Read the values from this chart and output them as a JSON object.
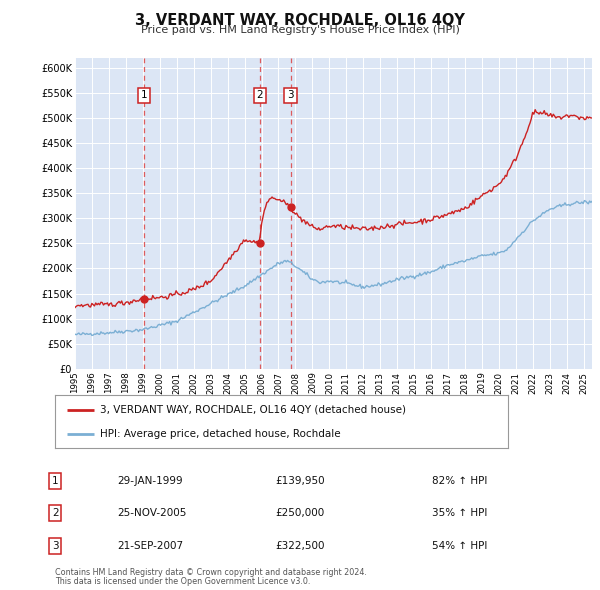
{
  "title": "3, VERDANT WAY, ROCHDALE, OL16 4QY",
  "subtitle": "Price paid vs. HM Land Registry's House Price Index (HPI)",
  "background_color": "#ffffff",
  "plot_bg_color": "#dce6f5",
  "grid_color": "#ffffff",
  "ylim": [
    0,
    620000
  ],
  "yticks": [
    0,
    50000,
    100000,
    150000,
    200000,
    250000,
    300000,
    350000,
    400000,
    450000,
    500000,
    550000,
    600000
  ],
  "ytick_labels": [
    "£0",
    "£50K",
    "£100K",
    "£150K",
    "£200K",
    "£250K",
    "£300K",
    "£350K",
    "£400K",
    "£450K",
    "£500K",
    "£550K",
    "£600K"
  ],
  "hpi_line_color": "#7bafd4",
  "price_line_color": "#cc2222",
  "sale_marker_color": "#cc2222",
  "dashed_line_color": "#dd4444",
  "sale_points": [
    {
      "label": 1,
      "date_x": 1999.08,
      "price": 139950,
      "date_str": "29-JAN-1999",
      "price_str": "£139,950",
      "hpi_str": "82% ↑ HPI"
    },
    {
      "label": 2,
      "date_x": 2005.9,
      "price": 250000,
      "date_str": "25-NOV-2005",
      "price_str": "£250,000",
      "hpi_str": "35% ↑ HPI"
    },
    {
      "label": 3,
      "date_x": 2007.72,
      "price": 322500,
      "date_str": "21-SEP-2007",
      "price_str": "£322,500",
      "hpi_str": "54% ↑ HPI"
    }
  ],
  "legend_label_price": "3, VERDANT WAY, ROCHDALE, OL16 4QY (detached house)",
  "legend_label_hpi": "HPI: Average price, detached house, Rochdale",
  "footer_line1": "Contains HM Land Registry data © Crown copyright and database right 2024.",
  "footer_line2": "This data is licensed under the Open Government Licence v3.0.",
  "xmin": 1995.0,
  "xmax": 2025.5
}
